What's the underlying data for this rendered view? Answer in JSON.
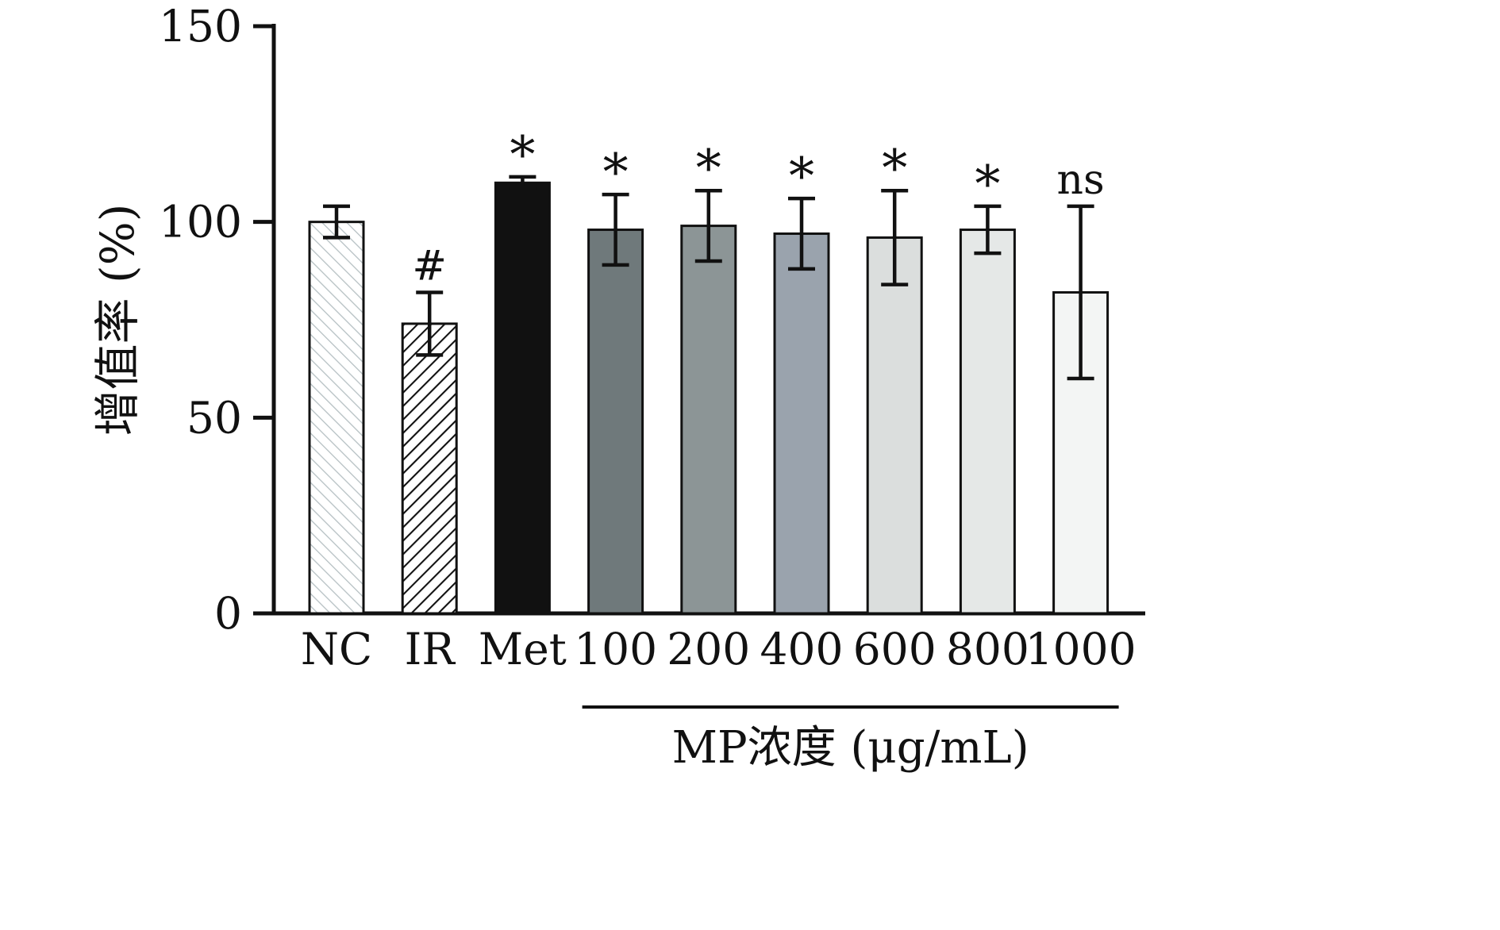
{
  "chart_data": {
    "type": "bar",
    "title": "",
    "ylabel": "增值率 (%)",
    "group_axis_label": "MP浓度 (μg/mL)",
    "ylim": [
      0,
      150
    ],
    "yticks": [
      0,
      50,
      100,
      150
    ],
    "grid": false,
    "legend": "none",
    "categories": [
      "NC",
      "IR",
      "Met",
      "100",
      "200",
      "400",
      "600",
      "800",
      "1000"
    ],
    "values": [
      100,
      74,
      110,
      98,
      99,
      97,
      96,
      98,
      82
    ],
    "errors": [
      4,
      8,
      1.5,
      9,
      9,
      9,
      12,
      6,
      22
    ],
    "annotations": [
      "",
      "#",
      "*",
      "*",
      "*",
      "*",
      "*",
      "*",
      "ns"
    ],
    "group_label_span": [
      "100",
      "1000"
    ],
    "bar_styles": [
      {
        "pattern": "diagonal-light",
        "fill": ""
      },
      {
        "pattern": "diagonal-dark",
        "fill": ""
      },
      {
        "pattern": "",
        "fill": "#111111"
      },
      {
        "pattern": "",
        "fill": "#6f797b"
      },
      {
        "pattern": "",
        "fill": "#8c9596"
      },
      {
        "pattern": "",
        "fill": "#9aa3ad"
      },
      {
        "pattern": "",
        "fill": "#dbdedd"
      },
      {
        "pattern": "",
        "fill": "#e5e8e7"
      },
      {
        "pattern": "",
        "fill": "#f3f5f4"
      }
    ],
    "colors": {
      "axis": "#111111",
      "error_bar": "#111111",
      "hatch_light": "#b6c0c3",
      "hatch_dark": "#111111",
      "bar_border": "#111111"
    }
  }
}
